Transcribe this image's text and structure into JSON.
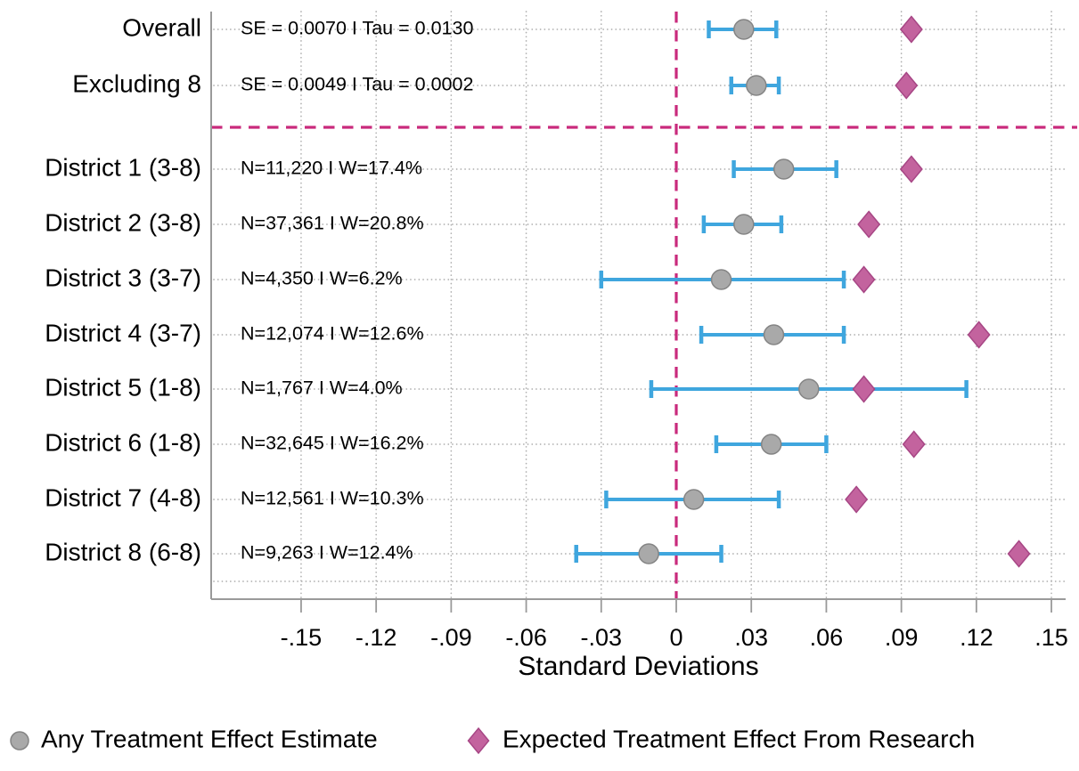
{
  "colors": {
    "background": "#ffffff",
    "ci_blue": "#3fa6de",
    "estimate_gray_fill": "#a9a9a9",
    "estimate_gray_stroke": "#848484",
    "expected_pink_fill": "#c3639e",
    "expected_pink_stroke": "#a74685",
    "reference_magenta": "#c92a7c",
    "grid_dot_gray": "#b0b0b0",
    "axis_gray": "#9a9a9a",
    "text_black": "#000000"
  },
  "chart_data": {
    "type": "forest",
    "title": "",
    "xlabel": "Standard Deviations",
    "xlim": [
      -0.186,
      0.156
    ],
    "grid": true,
    "zero_line": 0,
    "x_ticks": [
      {
        "value": -0.15,
        "label": "-.15"
      },
      {
        "value": -0.12,
        "label": "-.12"
      },
      {
        "value": -0.09,
        "label": "-.09"
      },
      {
        "value": -0.06,
        "label": "-.06"
      },
      {
        "value": -0.03,
        "label": "-.03"
      },
      {
        "value": 0,
        "label": "0"
      },
      {
        "value": 0.03,
        "label": ".03"
      },
      {
        "value": 0.06,
        "label": ".06"
      },
      {
        "value": 0.09,
        "label": ".09"
      },
      {
        "value": 0.12,
        "label": ".12"
      },
      {
        "value": 0.15,
        "label": ".15"
      }
    ],
    "rows": [
      {
        "label": "Overall",
        "annotation": "SE = 0.0070 I Tau = 0.0130",
        "estimate": 0.027,
        "ci_low": 0.013,
        "ci_high": 0.04,
        "expected": 0.094,
        "group": "summary"
      },
      {
        "label": "Excluding 8",
        "annotation": "SE = 0.0049 I Tau = 0.0002",
        "estimate": 0.032,
        "ci_low": 0.022,
        "ci_high": 0.041,
        "expected": 0.092,
        "group": "summary"
      },
      {
        "label": "District 1 (3-8)",
        "annotation": "N=11,220 I W=17.4%",
        "estimate": 0.043,
        "ci_low": 0.023,
        "ci_high": 0.064,
        "expected": 0.094,
        "group": "district"
      },
      {
        "label": "District 2 (3-8)",
        "annotation": "N=37,361 I W=20.8%",
        "estimate": 0.027,
        "ci_low": 0.011,
        "ci_high": 0.042,
        "expected": 0.077,
        "group": "district"
      },
      {
        "label": "District 3 (3-7)",
        "annotation": "N=4,350 I W=6.2%",
        "estimate": 0.018,
        "ci_low": -0.03,
        "ci_high": 0.067,
        "expected": 0.075,
        "group": "district"
      },
      {
        "label": "District 4 (3-7)",
        "annotation": "N=12,074 I W=12.6%",
        "estimate": 0.039,
        "ci_low": 0.01,
        "ci_high": 0.067,
        "expected": 0.121,
        "group": "district"
      },
      {
        "label": "District 5 (1-8)",
        "annotation": "N=1,767 I W=4.0%",
        "estimate": 0.053,
        "ci_low": -0.01,
        "ci_high": 0.116,
        "expected": 0.075,
        "group": "district"
      },
      {
        "label": "District 6 (1-8)",
        "annotation": "N=32,645 I W=16.2%",
        "estimate": 0.038,
        "ci_low": 0.016,
        "ci_high": 0.06,
        "expected": 0.095,
        "group": "district"
      },
      {
        "label": "District 7 (4-8)",
        "annotation": "N=12,561 I W=10.3%",
        "estimate": 0.007,
        "ci_low": -0.028,
        "ci_high": 0.041,
        "expected": 0.072,
        "group": "district"
      },
      {
        "label": "District 8 (6-8)",
        "annotation": "N=9,263 I W=12.4%",
        "estimate": -0.011,
        "ci_low": -0.04,
        "ci_high": 0.018,
        "expected": 0.137,
        "group": "district"
      }
    ],
    "legend_position": "bottom",
    "legend": [
      {
        "marker": "circle",
        "label": "Any Treatment Effect Estimate"
      },
      {
        "marker": "diamond",
        "label": "Expected Treatment Effect From Research"
      }
    ]
  }
}
